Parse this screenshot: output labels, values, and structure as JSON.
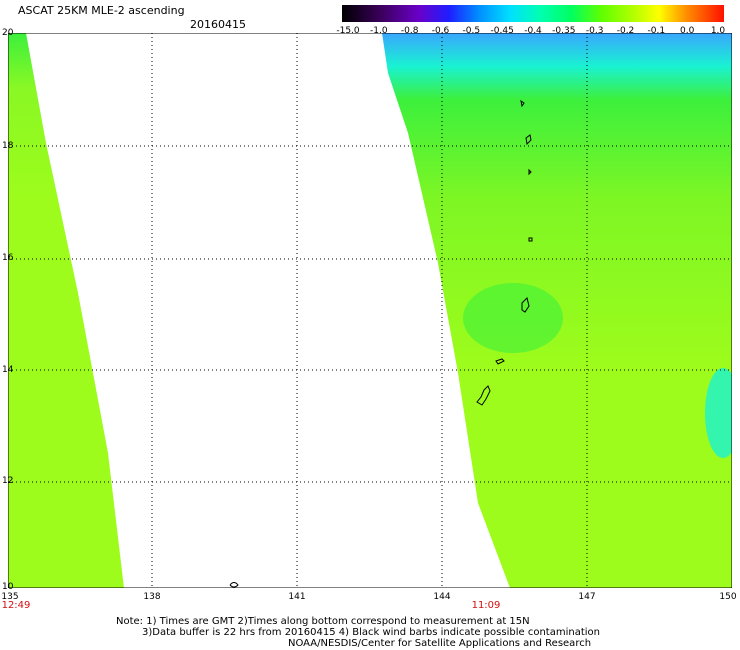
{
  "header": {
    "title": "ASCAT 25KM MLE-2 ascending",
    "date": "20160415"
  },
  "colorbar": {
    "labels": [
      "-15.0",
      "-1.0",
      "-0.8",
      "-0.6",
      "-0.5",
      "-0.45",
      "-0.4",
      "-0.35",
      "-0.3",
      "-0.2",
      "-0.1",
      "0.0",
      "1.0"
    ],
    "colors": [
      "#000000",
      "#3a005a",
      "#6a00c8",
      "#1e1eff",
      "#0090ff",
      "#00e0ff",
      "#00ffb0",
      "#00ff60",
      "#60ff00",
      "#b0ff00",
      "#ffff00",
      "#ff9000",
      "#ff1000"
    ]
  },
  "axes": {
    "lat_labels": [
      "20",
      "18",
      "16",
      "14",
      "12",
      "10"
    ],
    "lon_labels": [
      "135",
      "138",
      "141",
      "144",
      "147",
      "150"
    ],
    "lat_range": [
      10,
      20
    ],
    "lon_range": [
      135,
      150
    ]
  },
  "times": {
    "left": "12:49",
    "right": "11:09"
  },
  "notes": {
    "line1": "Note: 1) Times are GMT 2)Times along bottom correspond to measurement at 15N",
    "line2": "3)Data buffer is 22 hrs from 20160415 4) Black wind barbs indicate possible contamination",
    "line3": "NOAA/NESDIS/Center for Satellite Applications and Research"
  },
  "colors": {
    "swath_green": "#9dfc1c",
    "swath_deep": "#3cf03c",
    "swath_cyan": "#19f2d2",
    "swath_blue": "#3aa6ff",
    "grid": "#000000",
    "time_text": "#d01010"
  }
}
